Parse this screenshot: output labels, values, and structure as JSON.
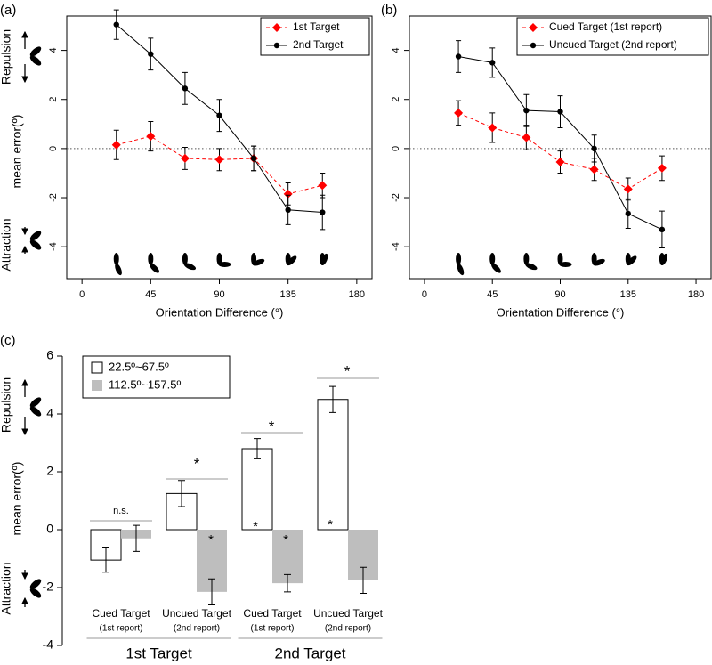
{
  "chart_data": [
    {
      "type": "line",
      "panel_label": "(a)",
      "xlabel": "Orientation Difference (°)",
      "ylabel": "mean error(º)",
      "side_labels": [
        "Repulsion",
        "Attraction"
      ],
      "x": [
        22.5,
        45,
        67.5,
        90,
        112.5,
        135,
        157.5
      ],
      "xlim": [
        -10,
        190
      ],
      "xticks": [
        0,
        45,
        90,
        135,
        180
      ],
      "ylim": [
        -5.3,
        5.4
      ],
      "yticks": [
        -4,
        -2,
        0,
        2,
        4
      ],
      "hline": 0,
      "legend": "topright",
      "series": [
        {
          "name": "1st Target",
          "color": "#ff0000",
          "marker": "diamond",
          "linestyle": "dashed",
          "values": [
            0.15,
            0.5,
            -0.4,
            -0.45,
            -0.4,
            -1.85,
            -1.5
          ],
          "errors": [
            0.6,
            0.6,
            0.45,
            0.45,
            0.5,
            0.45,
            0.5
          ]
        },
        {
          "name": "2nd Target",
          "color": "#000000",
          "marker": "circle",
          "linestyle": "solid",
          "values": [
            5.05,
            3.85,
            2.45,
            1.35,
            -0.4,
            -2.5,
            -2.6
          ],
          "errors": [
            0.6,
            0.65,
            0.65,
            0.65,
            0.5,
            0.6,
            0.7
          ]
        }
      ]
    },
    {
      "type": "line",
      "panel_label": "(b)",
      "xlabel": "Orientation Difference (°)",
      "x": [
        22.5,
        45,
        67.5,
        90,
        112.5,
        135,
        157.5
      ],
      "xlim": [
        -10,
        190
      ],
      "xticks": [
        0,
        45,
        90,
        135,
        180
      ],
      "ylim": [
        -5.3,
        5.4
      ],
      "yticks": [
        -4,
        -2,
        0,
        2,
        4
      ],
      "hline": 0,
      "legend": "topright",
      "series": [
        {
          "name": "Cued Target (1st report)",
          "color": "#ff0000",
          "marker": "diamond",
          "linestyle": "dashed",
          "values": [
            1.45,
            0.85,
            0.45,
            -0.55,
            -0.85,
            -1.65,
            -0.8
          ],
          "errors": [
            0.5,
            0.6,
            0.5,
            0.45,
            0.45,
            0.45,
            0.5
          ]
        },
        {
          "name": "Uncued Target (2nd report)",
          "color": "#000000",
          "marker": "circle",
          "linestyle": "solid",
          "values": [
            3.75,
            3.5,
            1.55,
            1.5,
            0.0,
            -2.65,
            -3.3
          ],
          "errors": [
            0.65,
            0.6,
            0.65,
            0.65,
            0.55,
            0.6,
            0.75
          ]
        }
      ]
    },
    {
      "type": "bar",
      "panel_label": "(c)",
      "ylabel": "mean error(º)",
      "side_labels": [
        "Repulsion",
        "Attraction"
      ],
      "categories": [
        "Cued Target",
        "Uncued Target",
        "Cued Target",
        "Uncued Target"
      ],
      "category_notes": [
        "(1st report)",
        "(2nd report)",
        "(1st report)",
        "(2nd report)"
      ],
      "groups": [
        "1st Target",
        "2nd Target"
      ],
      "ylim": [
        -4,
        6
      ],
      "yticks": [
        -4,
        -2,
        0,
        2,
        4,
        6
      ],
      "legend": "topleft",
      "series": [
        {
          "name": "22.5º~67.5º",
          "color": "#ffffff",
          "values": [
            -1.05,
            1.25,
            2.8,
            4.5
          ],
          "errors": [
            0.42,
            0.45,
            0.35,
            0.45
          ]
        },
        {
          "name": "112.5º~157.5º",
          "color": "#bebebe",
          "values": [
            -0.3,
            -2.15,
            -1.85,
            -1.75
          ],
          "errors": [
            0.45,
            0.45,
            0.3,
            0.45
          ]
        }
      ],
      "annotations": [
        "n.s.",
        "*",
        "*",
        "*",
        "*",
        "*",
        "*",
        "*"
      ]
    }
  ]
}
